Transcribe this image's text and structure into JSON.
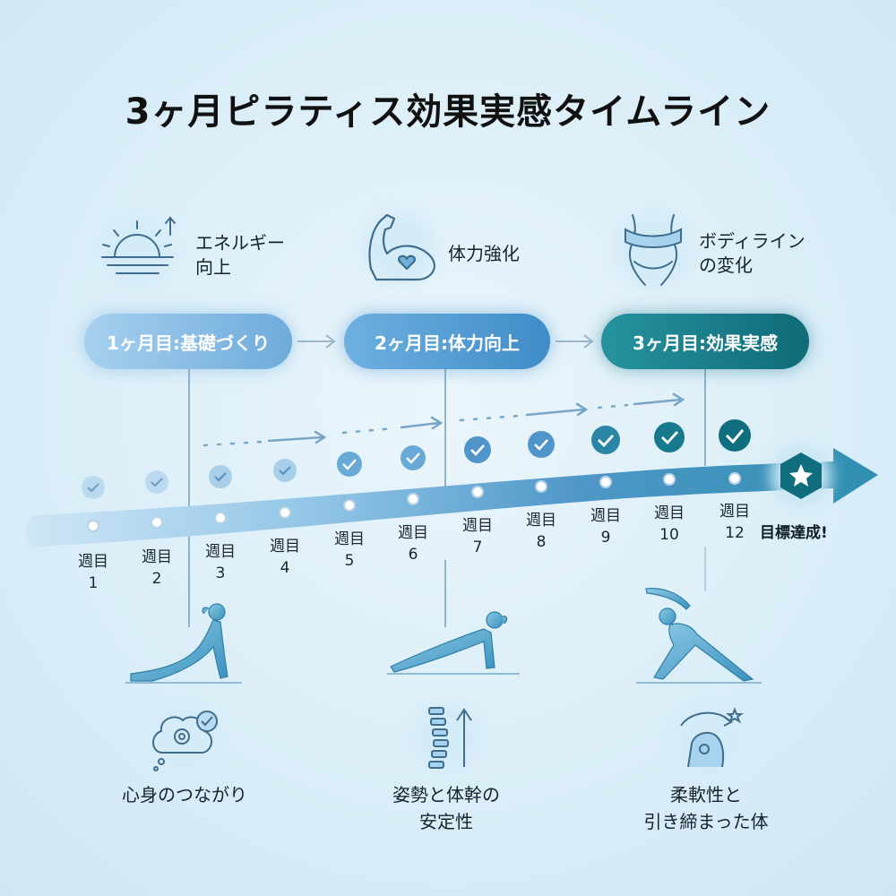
{
  "title": "3ヶ月ピラティス効果実感タイムライン",
  "benefits": [
    {
      "label": "エネルギー\n向上",
      "icon": "sunrise-icon"
    },
    {
      "label": "体力強化",
      "icon": "flexed-arm-icon"
    },
    {
      "label": "ボディライン\nの変化",
      "icon": "waist-measure-icon"
    }
  ],
  "phases": [
    {
      "label": "1ヶ月目:基礎づくり"
    },
    {
      "label": "2ヶ月目:体力向上"
    },
    {
      "label": "3ヶ月目:効果実感"
    }
  ],
  "weeks": [
    {
      "label": "週目\n1"
    },
    {
      "label": "週目\n2"
    },
    {
      "label": "週目\n3"
    },
    {
      "label": "週目\n4"
    },
    {
      "label": "週目\n5"
    },
    {
      "label": "週目\n6"
    },
    {
      "label": "週目\n7"
    },
    {
      "label": "週目\n8"
    },
    {
      "label": "週目\n9"
    },
    {
      "label": "週目\n10"
    },
    {
      "label": "週目\n12"
    }
  ],
  "goal": {
    "label": "目標達成!",
    "icon": "star-badge-icon"
  },
  "outcomes": [
    {
      "label": "心身のつながり",
      "icon": "mind-gear-icon",
      "pose": "cobra-pose-figure"
    },
    {
      "label": "姿勢と体幹の\n安定性",
      "icon": "spine-arrow-icon",
      "pose": "plank-pose-figure"
    },
    {
      "label": "柔軟性と\n引き締まった体",
      "icon": "flexible-body-icon",
      "pose": "side-stretch-pose-figure"
    }
  ],
  "colors": {
    "phase1": "#79b4e2",
    "phase2": "#4f97cf",
    "phase3": "#1c8592",
    "check_light": "#a9d0eb",
    "check_dark": "#0f7b84",
    "figure": "#4a9cc4"
  }
}
